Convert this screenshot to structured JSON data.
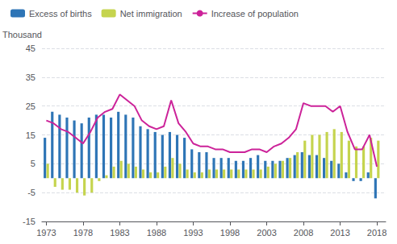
{
  "chart_data": {
    "type": "bar",
    "ylabel": "Thousand",
    "x": [
      1973,
      1974,
      1975,
      1976,
      1977,
      1978,
      1979,
      1980,
      1981,
      1982,
      1983,
      1984,
      1985,
      1986,
      1987,
      1988,
      1989,
      1990,
      1991,
      1992,
      1993,
      1994,
      1995,
      1996,
      1997,
      1998,
      1999,
      2000,
      2001,
      2002,
      2003,
      2004,
      2005,
      2006,
      2007,
      2008,
      2009,
      2010,
      2011,
      2012,
      2013,
      2014,
      2015,
      2016,
      2017,
      2018
    ],
    "series": [
      {
        "name": "Excess of births",
        "type": "bar",
        "color": "#2E75B6",
        "values": [
          14,
          23,
          22,
          21,
          20,
          19,
          21,
          22,
          22,
          21,
          23,
          22,
          21,
          18,
          17,
          16,
          15,
          16,
          15,
          14,
          10,
          9,
          9,
          7,
          7,
          7,
          6,
          6,
          7,
          8,
          6,
          6,
          6,
          7,
          8,
          9,
          8,
          8,
          7,
          6,
          5,
          2,
          -1,
          -1,
          2,
          -7
        ]
      },
      {
        "name": "Net immigration",
        "type": "bar",
        "color": "#C5D44E",
        "values": [
          5,
          -3,
          -4,
          -4,
          -5,
          -6,
          -5,
          -1,
          1,
          4,
          6,
          5,
          4,
          3,
          2,
          2,
          4,
          7,
          5,
          3,
          2,
          2,
          3,
          3,
          3,
          3,
          3,
          3,
          3,
          3,
          4,
          5,
          6,
          7,
          9,
          13,
          15,
          15,
          16,
          17,
          16,
          13,
          11,
          11,
          14,
          13
        ]
      },
      {
        "name": "Increase of population",
        "type": "line",
        "color": "#CC2299",
        "values": [
          20,
          19,
          17,
          16,
          14,
          12,
          16,
          21,
          23,
          24,
          29,
          27,
          25,
          20,
          18,
          17,
          18,
          27,
          19,
          16,
          12,
          11,
          11,
          10,
          10,
          9,
          9,
          9,
          10,
          10,
          9,
          11,
          12,
          14,
          17,
          26,
          25,
          25,
          25,
          23,
          25,
          16,
          10,
          10,
          15,
          4
        ]
      }
    ],
    "xlim": [
      1972.4,
      2019.2
    ],
    "xticks": [
      1973,
      1978,
      1983,
      1988,
      1993,
      1998,
      2003,
      2008,
      2013,
      2018
    ],
    "ylim": [
      -15,
      45
    ],
    "yticks": [
      -15,
      -5,
      5,
      15,
      25,
      35,
      45
    ],
    "grid": true,
    "legend": "upper left"
  }
}
